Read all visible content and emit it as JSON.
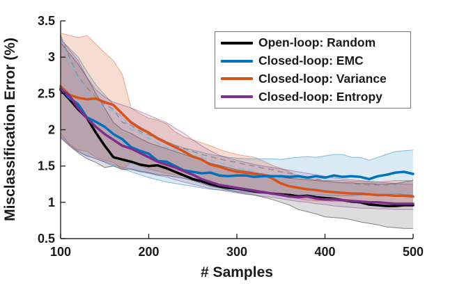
{
  "figure": {
    "background": "#ffffff",
    "axis_color": "#262626"
  },
  "chart_data": {
    "type": "line",
    "title": "",
    "xlabel": "# Samples",
    "ylabel": "Misclassification Error (%)",
    "xlim": [
      100,
      500
    ],
    "ylim": [
      0.5,
      3.5
    ],
    "xticks": [
      100,
      200,
      300,
      400,
      500
    ],
    "xtick_labels": [
      "100",
      "200",
      "300",
      "400",
      "500"
    ],
    "yticks": [
      0.5,
      1,
      1.5,
      2,
      2.5,
      3,
      3.5
    ],
    "ytick_labels": [
      "0.5",
      "1",
      "1.5",
      "2",
      "2.5",
      "3",
      "3.5"
    ],
    "grid": false,
    "legend_position": "upper right",
    "x": [
      100,
      110,
      120,
      130,
      140,
      150,
      160,
      170,
      180,
      190,
      200,
      210,
      220,
      230,
      240,
      250,
      260,
      270,
      280,
      290,
      300,
      310,
      320,
      330,
      340,
      350,
      360,
      370,
      380,
      390,
      400,
      410,
      420,
      430,
      440,
      450,
      460,
      470,
      480,
      490,
      500
    ],
    "draw_order": [
      0,
      2,
      1,
      3
    ],
    "series": [
      {
        "name": "Open-loop: Random",
        "color": "#000000",
        "band_color": "#555555",
        "band_opacity": 0.2,
        "values": [
          2.55,
          2.42,
          2.28,
          2.16,
          1.96,
          1.78,
          1.62,
          1.59,
          1.56,
          1.52,
          1.5,
          1.51,
          1.47,
          1.42,
          1.37,
          1.32,
          1.29,
          1.25,
          1.22,
          1.2,
          1.19,
          1.17,
          1.15,
          1.14,
          1.12,
          1.11,
          1.1,
          1.08,
          1.09,
          1.07,
          1.06,
          1.05,
          1.03,
          1.01,
          1.0,
          0.97,
          0.96,
          0.95,
          0.95,
          0.96,
          0.96
        ],
        "band_upper": [
          3.2,
          3.05,
          2.9,
          2.72,
          2.5,
          2.3,
          2.1,
          2.0,
          1.95,
          1.88,
          1.82,
          1.78,
          1.74,
          1.7,
          1.66,
          1.62,
          1.58,
          1.54,
          1.51,
          1.48,
          1.45,
          1.43,
          1.41,
          1.39,
          1.37,
          1.35,
          1.33,
          1.32,
          1.31,
          1.3,
          1.29,
          1.28,
          1.27,
          1.27,
          1.26,
          1.26,
          1.25,
          1.25,
          1.26,
          1.28,
          1.3
        ],
        "band_lower": [
          1.9,
          1.78,
          1.68,
          1.6,
          1.55,
          1.48,
          1.5,
          1.45,
          1.46,
          1.43,
          1.41,
          1.38,
          1.37,
          1.35,
          1.33,
          1.3,
          1.26,
          1.22,
          1.2,
          1.17,
          1.14,
          1.12,
          1.1,
          1.07,
          1.04,
          1.0,
          0.96,
          0.9,
          0.87,
          0.84,
          0.8,
          0.79,
          0.78,
          0.76,
          0.73,
          0.71,
          0.69,
          0.66,
          0.65,
          0.64,
          0.64
        ]
      },
      {
        "name": "Closed-loop: EMC",
        "color": "#0072BD",
        "band_color": "#0072BD",
        "band_opacity": 0.15,
        "values": [
          2.57,
          2.44,
          2.35,
          2.17,
          2.11,
          2.04,
          1.94,
          1.87,
          1.76,
          1.71,
          1.67,
          1.57,
          1.56,
          1.5,
          1.44,
          1.42,
          1.4,
          1.41,
          1.37,
          1.36,
          1.37,
          1.37,
          1.35,
          1.36,
          1.36,
          1.36,
          1.35,
          1.36,
          1.34,
          1.36,
          1.34,
          1.37,
          1.35,
          1.36,
          1.35,
          1.32,
          1.36,
          1.38,
          1.41,
          1.42,
          1.39
        ],
        "band_upper": [
          3.25,
          3.12,
          3.0,
          2.8,
          2.62,
          2.48,
          2.35,
          2.22,
          2.12,
          2.04,
          1.97,
          1.9,
          1.84,
          1.79,
          1.75,
          1.72,
          1.69,
          1.66,
          1.64,
          1.62,
          1.61,
          1.6,
          1.6,
          1.6,
          1.6,
          1.59,
          1.61,
          1.62,
          1.63,
          1.62,
          1.64,
          1.66,
          1.66,
          1.62,
          1.62,
          1.58,
          1.62,
          1.66,
          1.7,
          1.71,
          1.72
        ],
        "band_lower": [
          1.92,
          1.8,
          1.7,
          1.64,
          1.6,
          1.55,
          1.5,
          1.46,
          1.42,
          1.38,
          1.34,
          1.31,
          1.28,
          1.26,
          1.24,
          1.22,
          1.2,
          1.18,
          1.17,
          1.16,
          1.15,
          1.14,
          1.13,
          1.12,
          1.12,
          1.11,
          1.11,
          1.1,
          1.1,
          1.1,
          1.1,
          1.09,
          1.09,
          1.09,
          1.1,
          1.1,
          1.1,
          1.11,
          1.12,
          1.11,
          1.1
        ]
      },
      {
        "name": "Closed-loop: Variance",
        "color": "#D95319",
        "band_color": "#D95319",
        "band_opacity": 0.2,
        "values": [
          2.6,
          2.48,
          2.44,
          2.42,
          2.43,
          2.38,
          2.34,
          2.22,
          2.1,
          2.02,
          1.96,
          1.88,
          1.82,
          1.76,
          1.7,
          1.63,
          1.59,
          1.52,
          1.49,
          1.45,
          1.42,
          1.41,
          1.39,
          1.38,
          1.33,
          1.26,
          1.22,
          1.2,
          1.18,
          1.17,
          1.15,
          1.14,
          1.13,
          1.12,
          1.12,
          1.11,
          1.1,
          1.1,
          1.09,
          1.09,
          1.08
        ],
        "band_upper": [
          3.33,
          3.3,
          3.27,
          3.3,
          3.18,
          3.06,
          2.95,
          2.76,
          2.3,
          2.22,
          2.16,
          2.13,
          2.08,
          1.97,
          1.9,
          1.86,
          1.82,
          1.78,
          1.73,
          1.69,
          1.66,
          1.64,
          1.62,
          1.57,
          1.51,
          1.47,
          1.42,
          1.36,
          1.33,
          1.31,
          1.3,
          1.3,
          1.3,
          1.29,
          1.29,
          1.28,
          1.28,
          1.29,
          1.3,
          1.3,
          1.3
        ],
        "band_lower": [
          1.95,
          1.8,
          1.72,
          1.7,
          1.62,
          1.58,
          1.55,
          1.45,
          1.55,
          1.5,
          1.46,
          1.43,
          1.4,
          1.38,
          1.36,
          1.33,
          1.3,
          1.27,
          1.24,
          1.23,
          1.21,
          1.19,
          1.17,
          1.15,
          1.12,
          1.09,
          1.07,
          1.05,
          1.03,
          1.02,
          1.02,
          1.01,
          1.01,
          1.0,
          1.0,
          1.0,
          1.0,
          0.99,
          0.99,
          0.99,
          0.99
        ]
      },
      {
        "name": "Closed-loop: Entropy",
        "color": "#7E2F8E",
        "band_color": "#7E2F8E",
        "band_opacity": 0.13,
        "values": [
          2.56,
          2.47,
          2.3,
          2.16,
          2.04,
          1.94,
          1.86,
          1.78,
          1.74,
          1.68,
          1.62,
          1.56,
          1.52,
          1.48,
          1.43,
          1.38,
          1.32,
          1.28,
          1.24,
          1.22,
          1.2,
          1.18,
          1.16,
          1.14,
          1.12,
          1.1,
          1.08,
          1.07,
          1.08,
          1.05,
          1.04,
          1.04,
          1.03,
          1.02,
          1.01,
          1.0,
          1.0,
          0.99,
          0.98,
          0.98,
          0.98
        ],
        "band_upper": [
          3.25,
          3.1,
          2.95,
          2.72,
          2.55,
          2.45,
          2.38,
          2.34,
          2.3,
          2.25,
          2.2,
          2.15,
          2.1,
          2.02,
          1.95,
          1.86,
          1.78,
          1.71,
          1.65,
          1.61,
          1.58,
          1.55,
          1.52,
          1.5,
          1.48,
          1.46,
          1.44,
          1.42,
          1.4,
          1.38,
          1.36,
          1.34,
          1.32,
          1.31,
          1.3,
          1.29,
          1.28,
          1.27,
          1.26,
          1.25,
          1.25
        ],
        "band_lower": [
          1.88,
          1.78,
          1.7,
          1.64,
          1.6,
          1.56,
          1.52,
          1.48,
          1.45,
          1.42,
          1.4,
          1.37,
          1.35,
          1.31,
          1.28,
          1.25,
          1.22,
          1.19,
          1.17,
          1.15,
          1.13,
          1.11,
          1.1,
          1.08,
          1.07,
          1.05,
          1.03,
          1.01,
          1.0,
          0.98,
          0.97,
          0.95,
          0.94,
          0.93,
          0.92,
          0.92,
          0.91,
          0.91,
          0.9,
          0.9,
          0.9
        ]
      }
    ],
    "dashed_overlays": [
      {
        "name": "gray-dashed-line",
        "color": "#8c8c8c",
        "values": [
          3.3,
          3.0,
          2.73,
          2.58,
          2.45,
          2.35,
          2.28,
          2.1,
          2.06,
          1.98,
          1.93,
          1.88,
          1.83,
          1.78,
          1.74,
          1.7,
          1.66,
          1.63,
          1.6,
          1.57,
          1.55,
          1.52,
          1.5,
          1.47,
          1.45,
          1.42,
          1.4,
          1.37,
          1.35,
          1.32,
          1.3,
          1.28,
          1.27,
          1.26,
          1.25,
          1.24,
          1.24,
          1.24,
          1.25,
          1.28,
          1.31
        ]
      },
      {
        "name": "blue-dashed-line",
        "color": "#7fb8e0",
        "values": [
          3.25,
          2.95,
          2.7,
          2.5,
          2.38,
          2.3,
          2.26,
          2.18,
          2.0,
          1.96,
          1.88,
          1.82,
          1.76,
          1.72,
          1.68,
          1.65,
          1.62,
          1.58,
          1.55,
          1.51,
          1.48,
          1.45,
          1.42,
          1.38,
          1.35,
          1.31,
          1.28,
          1.25,
          1.22,
          1.2,
          1.18,
          1.16,
          1.15,
          1.14,
          1.13,
          1.12,
          1.12,
          1.12,
          1.13,
          1.12,
          1.12
        ]
      }
    ],
    "legend": {
      "entries": [
        {
          "label": "Open-loop: Random",
          "color": "#000000"
        },
        {
          "label": "Closed-loop: EMC",
          "color": "#0072BD"
        },
        {
          "label": "Closed-loop: Variance",
          "color": "#D95319"
        },
        {
          "label": "Closed-loop: Entropy",
          "color": "#7E2F8E"
        }
      ]
    }
  }
}
